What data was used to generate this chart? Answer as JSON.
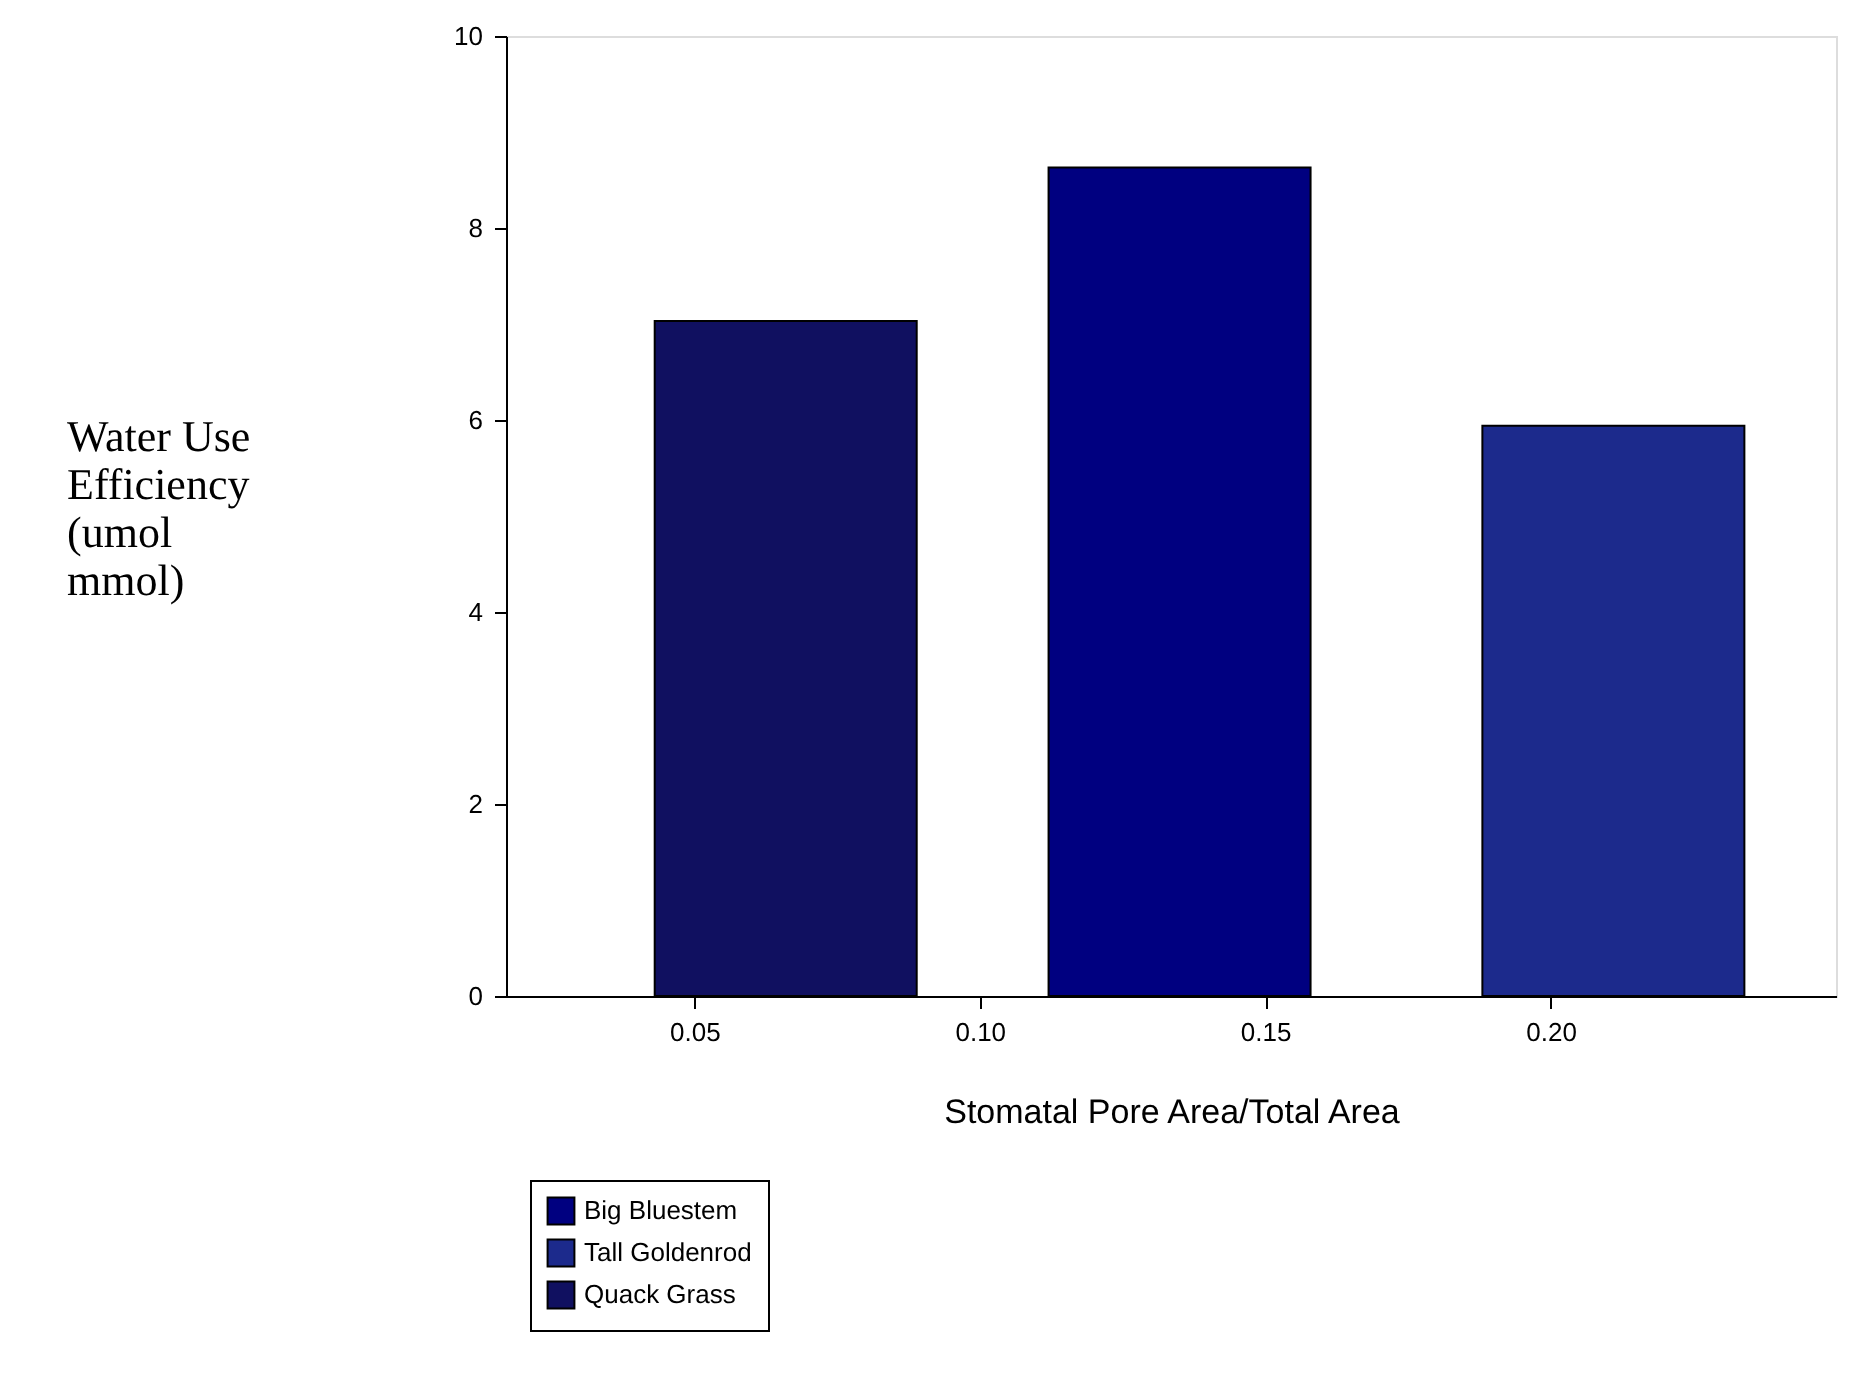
{
  "chart_data": {
    "type": "bar",
    "xlabel": "Stomatal Pore Area/Total Area",
    "ylabel": "Water Use Efficiency (umol mmol)",
    "xlim": [
      0.017,
      0.25
    ],
    "xticks": [
      {
        "value": 0.05,
        "label": "0.05"
      },
      {
        "value": 0.1,
        "label": "0.10"
      },
      {
        "value": 0.15,
        "label": "0.15"
      },
      {
        "value": 0.2,
        "label": "0.20"
      }
    ],
    "ylim": [
      0,
      10
    ],
    "yticks": [
      0,
      2,
      4,
      6,
      8,
      10
    ],
    "grid": false,
    "legend": "bottom left",
    "series": [
      {
        "name": "Big Bluestem",
        "color": "#000080",
        "x": [
          0.135
        ],
        "values": [
          8.63
        ]
      },
      {
        "name": "Tall Goldenrod",
        "color": "#1c2a8c",
        "x": [
          0.211
        ],
        "values": [
          5.94
        ]
      },
      {
        "name": "Quack Grass",
        "color": "#101060",
        "x": [
          0.066
        ],
        "values": [
          7.03
        ]
      }
    ]
  }
}
